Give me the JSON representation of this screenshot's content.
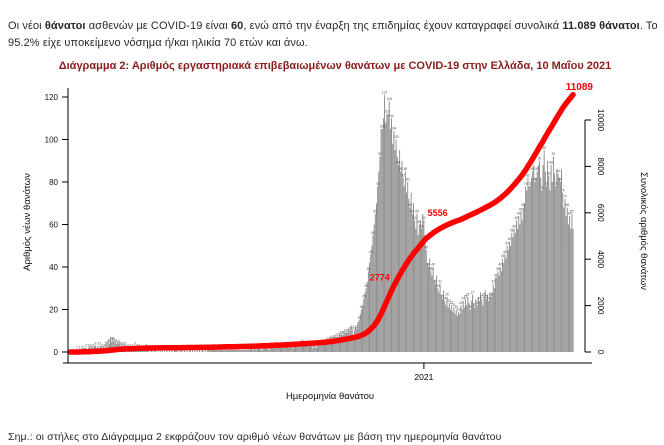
{
  "intro": {
    "segments": [
      {
        "text": "Οι νέοι "
      },
      {
        "text": "θάνατοι"
      },
      {
        "text": " ασθενών με COVID-19 είναι "
      },
      {
        "text": "60"
      },
      {
        "text": ", ενώ από την έναρξη της επιδημίας έχουν καταγραφεί συνολικά "
      },
      {
        "text": "11.089 θάνατοι"
      },
      {
        "text": ".  Το 95.2% είχε υποκείμενο νόσημα ή/και ηλικία 70 ετών και άνω."
      }
    ]
  },
  "note": {
    "text": "Σημ.: οι στήλες στο Διάγραμμα 2 εκφράζουν τον αριθμό νέων θανάτων με βάση την ημερομηνία θανάτου"
  },
  "chart_data": {
    "type": "bar",
    "title": "Διάγραμμα 2: Αριθμός εργαστηριακά επιβεβαιωμένων θανάτων με COVID-19 στην Ελλάδα, 10 Μαΐου 2021",
    "xlabel": "Ημερομηνία θανάτου",
    "ylabel": "Αριθμός νέων θανάτων",
    "ylabel_right": "Συνολικός αριθμός θανάτων",
    "x_range": [
      "2020-03-01",
      "2021-05-10"
    ],
    "x_ticks": [
      {
        "label": "2021",
        "day_index": 306
      }
    ],
    "yticks_left": [
      0,
      20,
      40,
      60,
      80,
      100,
      120
    ],
    "yticks_right": [
      0,
      2000,
      4000,
      6000,
      8000,
      10000
    ],
    "ylim_left": [
      0,
      125
    ],
    "ylim_right": [
      0,
      10860
    ],
    "series": [
      {
        "name": "daily_new_deaths",
        "type": "bar",
        "values": [
          0,
          0,
          0,
          0,
          0,
          0,
          1,
          0,
          1,
          1,
          1,
          2,
          1,
          2,
          2,
          1,
          2,
          3,
          2,
          3,
          2,
          3,
          3,
          2,
          3,
          2,
          3,
          3,
          2,
          3,
          2,
          5,
          3,
          6,
          4,
          7,
          5,
          7,
          5,
          6,
          4,
          5,
          4,
          5,
          3,
          4,
          3,
          4,
          3,
          3,
          2,
          3,
          2,
          3,
          2,
          2,
          3,
          2,
          2,
          1,
          2,
          3,
          1,
          2,
          1,
          1,
          2,
          1,
          1,
          0,
          1,
          1,
          0,
          1,
          1,
          0,
          1,
          0,
          1,
          0,
          1,
          0,
          1,
          0,
          1,
          0,
          1,
          0,
          1,
          0,
          1,
          1,
          1,
          0,
          1,
          0,
          1,
          1,
          0,
          2,
          0,
          1,
          0,
          1,
          1,
          0,
          1,
          0,
          1,
          0,
          1,
          0,
          1,
          0,
          1,
          1,
          0,
          2,
          0,
          1,
          1,
          1,
          1,
          1,
          2,
          1,
          1,
          1,
          1,
          1,
          1,
          2,
          1,
          1,
          1,
          2,
          1,
          1,
          1,
          1,
          2,
          1,
          1,
          1,
          1,
          1,
          1,
          1,
          1,
          1,
          1,
          1,
          1,
          1,
          2,
          1,
          2,
          2,
          1,
          2,
          2,
          1,
          2,
          3,
          2,
          2,
          1,
          2,
          2,
          3,
          2,
          2,
          1,
          2,
          3,
          2,
          2,
          2,
          3,
          2,
          2,
          2,
          2,
          2,
          2,
          3,
          2,
          3,
          3,
          2,
          3,
          4,
          3,
          2,
          3,
          4,
          3,
          3,
          2,
          3,
          4,
          3,
          4,
          3,
          3,
          4,
          3,
          4,
          3,
          4,
          2,
          3,
          3,
          2,
          3,
          4,
          3,
          5,
          4,
          5,
          4,
          6,
          5,
          6,
          5,
          7,
          6,
          7,
          6,
          8,
          7,
          8,
          7,
          9,
          8,
          9,
          8,
          10,
          9,
          10,
          9,
          11,
          10,
          12,
          11,
          8,
          10,
          12,
          11,
          14,
          15,
          18,
          20,
          22,
          25,
          28,
          30,
          33,
          38,
          42,
          46,
          50,
          55,
          60,
          65,
          70,
          78,
          85,
          92,
          105,
          105,
          110,
          121,
          108,
          112,
          112,
          118,
          105,
          110,
          98,
          104,
          95,
          100,
          92,
          88,
          95,
          85,
          90,
          82,
          78,
          85,
          75,
          80,
          72,
          68,
          75,
          65,
          70,
          62,
          58,
          65,
          55,
          60,
          62,
          58,
          65,
          62,
          55,
          48,
          42,
          40,
          44,
          38,
          36,
          40,
          34,
          32,
          36,
          30,
          28,
          32,
          27,
          25,
          29,
          24,
          22,
          26,
          21,
          23,
          20,
          22,
          19,
          21,
          18,
          20,
          17,
          19,
          18,
          22,
          20,
          24,
          21,
          25,
          22,
          26,
          23,
          20,
          24,
          27,
          23,
          21,
          25,
          22,
          26,
          24,
          28,
          25,
          22,
          26,
          29,
          25,
          27,
          24,
          28,
          26,
          28,
          32,
          30,
          35,
          35,
          38,
          36,
          40,
          38,
          44,
          42,
          46,
          44,
          50,
          48,
          52,
          50,
          56,
          54,
          58,
          56,
          62,
          58,
          64,
          60,
          66,
          62,
          68,
          70,
          78,
          76,
          82,
          78,
          78,
          82,
          85,
          88,
          80,
          82,
          85,
          88,
          90,
          82,
          76,
          88,
          95,
          85,
          78,
          90,
          83,
          76,
          88,
          80,
          92,
          84,
          78,
          86,
          84,
          82,
          80,
          86,
          75,
          68,
          72,
          64,
          68,
          60,
          64,
          58,
          65,
          58
        ]
      },
      {
        "name": "cumulative_deaths",
        "type": "line",
        "derived": "cumulative sum of daily_new_deaths",
        "final_value": 11089
      }
    ],
    "annotations": [
      {
        "label": "2774",
        "value": 2774
      },
      {
        "label": "5556",
        "value": 5556
      },
      {
        "label": "11089",
        "value": 11089
      }
    ],
    "legend": "none",
    "grid": false,
    "colors": {
      "bars": "#8c8c8c",
      "bar_value_labels": "#4a4a4a",
      "cumulative_line": "#ff0000",
      "annotation_text": "#ff0000",
      "title": "#8a1c1c",
      "axis": "#000000",
      "body_text": "#27272f"
    }
  }
}
